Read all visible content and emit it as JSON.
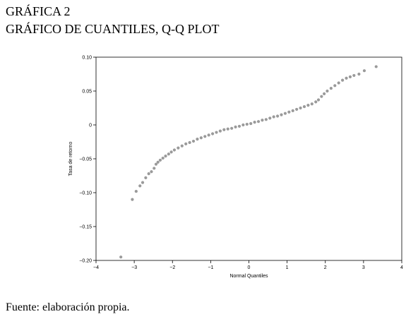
{
  "heading": {
    "line1": "GRÁFICA 2",
    "line2": "GRÁFICO DE CUANTILES, Q-Q PLOT"
  },
  "footer": "Fuente: elaboración propia.",
  "chart_data": {
    "type": "scatter",
    "xlabel": "Normal Quantiles",
    "ylabel": "Tasa de retorno",
    "xlim": [
      -4,
      4
    ],
    "ylim": [
      -0.2,
      0.1
    ],
    "xticks": [
      -4,
      -3,
      -2,
      -1,
      0,
      1,
      2,
      3,
      4
    ],
    "xtick_labels": [
      "−4",
      "−3",
      "−2",
      "−1",
      "0",
      "1",
      "2",
      "3",
      "4"
    ],
    "yticks": [
      0.1,
      0.05,
      0,
      -0.05,
      -0.1,
      -0.15,
      -0.2
    ],
    "ytick_labels": [
      "0.10",
      "0.05",
      "0",
      "−0.05",
      "−0.10",
      "−0.15",
      "−0.20"
    ],
    "grid": false,
    "marker_color": "#9a9a9a",
    "series": [
      {
        "x": [
          -3.35,
          -3.05,
          -2.95,
          -2.85,
          -2.78,
          -2.7,
          -2.62,
          -2.55,
          -2.48,
          -2.43,
          -2.38,
          -2.32,
          -2.25,
          -2.18,
          -2.1,
          -2.03,
          -1.95,
          -1.85,
          -1.75,
          -1.65,
          -1.55,
          -1.45,
          -1.35,
          -1.25,
          -1.15,
          -1.05,
          -0.95,
          -0.85,
          -0.75,
          -0.65,
          -0.55,
          -0.45,
          -0.35,
          -0.25,
          -0.15,
          -0.05,
          0.05,
          0.15,
          0.25,
          0.35,
          0.45,
          0.55,
          0.65,
          0.75,
          0.85,
          0.95,
          1.05,
          1.15,
          1.25,
          1.35,
          1.45,
          1.55,
          1.65,
          1.75,
          1.82,
          1.9,
          1.97,
          2.05,
          2.15,
          2.25,
          2.35,
          2.45,
          2.55,
          2.65,
          2.75,
          2.88,
          3.02,
          3.33
        ],
        "y": [
          -0.195,
          -0.11,
          -0.098,
          -0.09,
          -0.085,
          -0.078,
          -0.072,
          -0.069,
          -0.064,
          -0.058,
          -0.055,
          -0.052,
          -0.049,
          -0.046,
          -0.043,
          -0.04,
          -0.037,
          -0.034,
          -0.031,
          -0.028,
          -0.026,
          -0.024,
          -0.021,
          -0.019,
          -0.017,
          -0.015,
          -0.013,
          -0.011,
          -0.009,
          -0.007,
          -0.006,
          -0.005,
          -0.003,
          -0.002,
          0.0,
          0.001,
          0.002,
          0.004,
          0.005,
          0.007,
          0.008,
          0.01,
          0.012,
          0.013,
          0.015,
          0.017,
          0.019,
          0.021,
          0.023,
          0.025,
          0.027,
          0.029,
          0.031,
          0.034,
          0.037,
          0.042,
          0.046,
          0.05,
          0.054,
          0.058,
          0.062,
          0.066,
          0.069,
          0.071,
          0.073,
          0.075,
          0.08,
          0.086
        ]
      }
    ]
  }
}
